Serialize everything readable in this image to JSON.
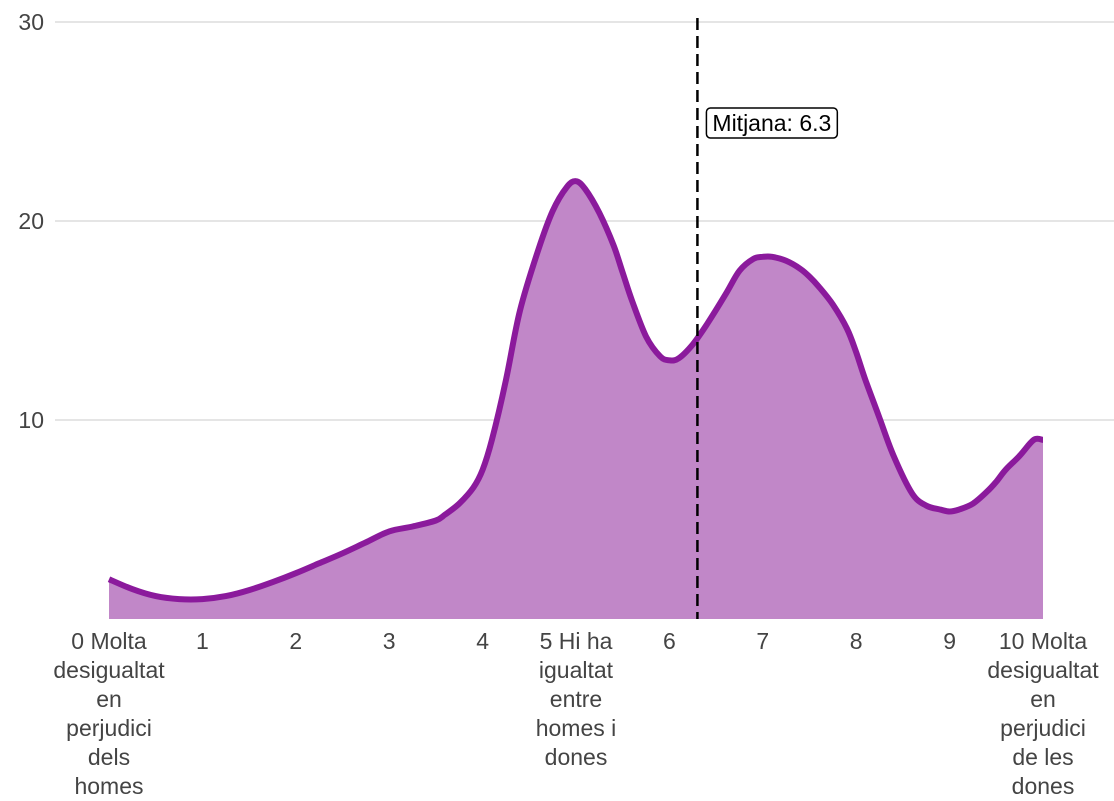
{
  "chart_data": {
    "type": "area",
    "title": "",
    "xlabel": "",
    "ylabel": "",
    "xlim": [
      0,
      10
    ],
    "ylim": [
      0,
      30
    ],
    "yticks": [
      10,
      20,
      30
    ],
    "grid": "horizontal",
    "x_tick_labels": [
      {
        "x": 0,
        "lines": [
          "0 Molta",
          "desigualtat",
          "en",
          "perjudici",
          "dels",
          "homes"
        ]
      },
      {
        "x": 1,
        "lines": [
          "1"
        ]
      },
      {
        "x": 2,
        "lines": [
          "2"
        ]
      },
      {
        "x": 3,
        "lines": [
          "3"
        ]
      },
      {
        "x": 4,
        "lines": [
          "4"
        ]
      },
      {
        "x": 5,
        "lines": [
          "5 Hi ha",
          "igualtat",
          "entre",
          "homes i",
          "dones"
        ]
      },
      {
        "x": 6,
        "lines": [
          "6"
        ]
      },
      {
        "x": 7,
        "lines": [
          "7"
        ]
      },
      {
        "x": 8,
        "lines": [
          "8"
        ]
      },
      {
        "x": 9,
        "lines": [
          "9"
        ]
      },
      {
        "x": 10,
        "lines": [
          "10 Molta",
          "desigualtat",
          "en",
          "perjudici",
          "de les",
          "dones"
        ]
      }
    ],
    "series": [
      {
        "x": [
          0,
          0.25,
          0.5,
          0.75,
          1,
          1.25,
          1.5,
          1.75,
          2,
          2.25,
          2.5,
          2.75,
          3,
          3.25,
          3.5,
          3.6,
          3.75,
          3.9,
          4,
          4.1,
          4.25,
          4.4,
          4.6,
          4.75,
          4.9,
          5,
          5.1,
          5.25,
          5.4,
          5.5,
          5.6,
          5.75,
          5.9,
          6,
          6.1,
          6.25,
          6.4,
          6.6,
          6.75,
          6.9,
          7,
          7.1,
          7.25,
          7.4,
          7.5,
          7.6,
          7.75,
          7.9,
          8,
          8.1,
          8.25,
          8.4,
          8.6,
          8.75,
          8.9,
          9,
          9.1,
          9.25,
          9.4,
          9.5,
          9.6,
          9.75,
          9.9,
          10
        ],
        "y": [
          2,
          1.5,
          1.15,
          1.0,
          1.0,
          1.15,
          1.45,
          1.85,
          2.3,
          2.8,
          3.3,
          3.85,
          4.4,
          4.65,
          4.95,
          5.25,
          5.8,
          6.6,
          7.5,
          9.0,
          12.0,
          15.5,
          18.6,
          20.5,
          21.7,
          22.0,
          21.6,
          20.4,
          18.8,
          17.4,
          16.0,
          14.2,
          13.2,
          13.0,
          13.1,
          13.8,
          14.8,
          16.3,
          17.5,
          18.1,
          18.2,
          18.2,
          18.0,
          17.6,
          17.2,
          16.7,
          15.8,
          14.6,
          13.4,
          12.0,
          10.1,
          8.2,
          6.3,
          5.7,
          5.5,
          5.4,
          5.5,
          5.8,
          6.4,
          6.9,
          7.5,
          8.2,
          9.0,
          9.0
        ]
      }
    ],
    "colors": {
      "line": "#8B1A9C",
      "fill": "#C187C8",
      "grid": "#E5E5E5",
      "mean_line": "#000000"
    },
    "annotations": [
      {
        "type": "vline",
        "x": 6.3,
        "style": "dashed",
        "label": "Mitjana: 6.3"
      }
    ]
  }
}
